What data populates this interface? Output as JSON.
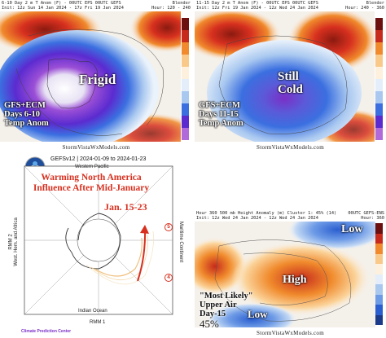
{
  "panel_tl": {
    "header_line1": "6-10 Day 2 m T Anom (F) - 00UTC EPS 00UTC GEFS",
    "header_line2": "Init: 12z Sun 14 Jan 2024 - 17z Fri 19 Jan 2024",
    "header_right1": "Blender",
    "header_right2": "Hour: 120 - 240",
    "big_label": "Frigid",
    "note_line1": "GFS+ECM",
    "note_line2": "Days 6-10",
    "note_line3": "Temp Anom",
    "footer": "StormVistaWxModels.com"
  },
  "panel_tr": {
    "header_line1": "11-15 Day 2 m T Anom (F) - 00UTC EPS 00UTC GEFS",
    "header_line2": "Init: 12z Fri 19 Jan 2024 - 12z Wed 24 Jan 2024",
    "header_right1": "Blender",
    "header_right2": "Hour: 240 - 360",
    "big_label_1": "Still",
    "big_label_2": "Cold",
    "note_line1": "GFS+ECM",
    "note_line2": "Days 11-15",
    "note_line3": "Temp Anom",
    "footer": "StormVistaWxModels.com"
  },
  "panel_bl": {
    "title": "GEFSv12 | 2024-01-09 to 2024-01-23",
    "headline1": "Warming North America",
    "headline2": "Influence After Mid-January",
    "dates": "Jan. 15-23",
    "phase_top": "Western Pacific",
    "phase_bottom": "Indian Ocean",
    "phase_left": "West. Hem. and Africa",
    "phase_right": "Maritime Continent",
    "axis_x": "RMM 1",
    "axis_y": "RMM 2",
    "circle_5": "5",
    "circle_4": "4",
    "footer": "Climate Prediction Center"
  },
  "panel_br": {
    "header_line1": "Hour 360 500 mb Height Anomaly (m) Cluster 1: 45% (14)",
    "header_line2": "Init: 12z Wed 24 Jan 2024 - 12z Wed 24 Jan 2024",
    "header_right1": "00UTC GEFS-ENS",
    "header_right2": "Hour: 360",
    "low_top": "Low",
    "high": "High",
    "low_bottom": "Low",
    "note_line1": "\"Most Likely\"",
    "note_line2": "Upper Air",
    "note_line3": "Day-15",
    "percent": "45%",
    "footer": "StormVistaWxModels.com"
  },
  "colors": {
    "purple": "#7a2fc7",
    "blue": "#3b6fe0",
    "lightblue": "#a9c8f0",
    "orange": "#f08a2c",
    "red": "#d7301f",
    "darkred": "#8b1a10"
  }
}
